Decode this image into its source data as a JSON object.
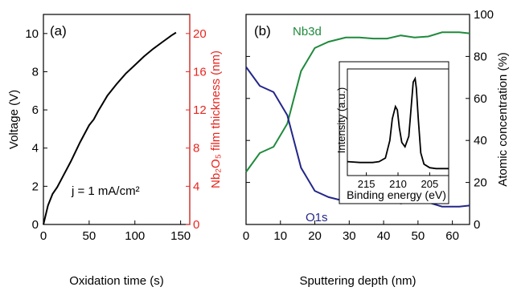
{
  "chart_data": [
    {
      "type": "line",
      "panel_label": "(a)",
      "xlabel": "Oxidation time (s)",
      "ylabel": "Voltage (V)",
      "ylabel_right": "Nb₂O₅ film thickness (nm)",
      "xlim": [
        0,
        160
      ],
      "ylim": [
        0,
        11
      ],
      "ylim_right": [
        0,
        22
      ],
      "xticks": [
        0,
        50,
        100,
        150
      ],
      "yticks": [
        0,
        2,
        4,
        6,
        8,
        10
      ],
      "yticks_right": [
        0,
        4,
        8,
        12,
        16,
        20
      ],
      "annotation": "j = 1 mA/cm²",
      "colors": {
        "series": "#000000",
        "right_axis": "#e8261f"
      },
      "series": [
        {
          "x": [
            0,
            5,
            10,
            15,
            20,
            30,
            40,
            50,
            55,
            60,
            70,
            80,
            90,
            100,
            110,
            120,
            130,
            140,
            145
          ],
          "values": [
            0,
            1.0,
            1.6,
            1.95,
            2.4,
            3.3,
            4.3,
            5.2,
            5.5,
            5.95,
            6.75,
            7.35,
            7.9,
            8.35,
            8.8,
            9.2,
            9.55,
            9.9,
            10.05
          ]
        }
      ]
    },
    {
      "type": "line",
      "panel_label": "(b)",
      "xlabel": "Sputtering depth (nm)",
      "ylabel": "Atomic concentration (%)",
      "xlim": [
        0,
        65
      ],
      "ylim": [
        0,
        100
      ],
      "xticks": [
        0,
        10,
        20,
        30,
        40,
        50,
        60
      ],
      "yticks": [
        0,
        20,
        40,
        60,
        80,
        100
      ],
      "series": [
        {
          "name": "Nb3d",
          "color": "#1f8a3c",
          "x": [
            0,
            4,
            8,
            12,
            16,
            20,
            24,
            29,
            33,
            37,
            41,
            45,
            49,
            53,
            57,
            62,
            65
          ],
          "values": [
            25,
            34,
            37,
            48,
            73,
            84,
            87,
            89,
            89,
            88.5,
            88.5,
            90,
            89,
            89.5,
            91.5,
            91.5,
            91
          ]
        },
        {
          "name": "O1s",
          "color": "#23268a",
          "x": [
            0,
            4,
            8,
            12,
            16,
            20,
            24,
            29,
            33,
            37,
            41,
            45,
            49,
            53,
            57,
            62,
            65
          ],
          "values": [
            75,
            66,
            63,
            52,
            27,
            16,
            13,
            11,
            11,
            11.5,
            11.5,
            10,
            11,
            10.5,
            8.5,
            8.5,
            9
          ]
        }
      ]
    },
    {
      "type": "line",
      "inset": true,
      "xlabel": "Binding energy (eV)",
      "ylabel": "Intensity (a.u.)",
      "xlim": [
        218,
        202
      ],
      "xticks": [
        215,
        210,
        205
      ],
      "series": [
        {
          "x": [
            218,
            216,
            214,
            213,
            212,
            211.3,
            210.9,
            210.4,
            210.1,
            209.8,
            209.4,
            208.9,
            208.3,
            207.9,
            207.6,
            207.3,
            207.1,
            206.8,
            206.4,
            205.9,
            205,
            204,
            203,
            202
          ],
          "values": [
            1.6,
            1.5,
            1.5,
            1.6,
            2.0,
            4.0,
            6.5,
            7.9,
            7.5,
            5.5,
            3.8,
            3.3,
            4.5,
            8.0,
            10.7,
            11.1,
            10.0,
            6.5,
            2.6,
            1.3,
            0.9,
            0.8,
            0.8,
            0.8
          ]
        }
      ]
    }
  ]
}
